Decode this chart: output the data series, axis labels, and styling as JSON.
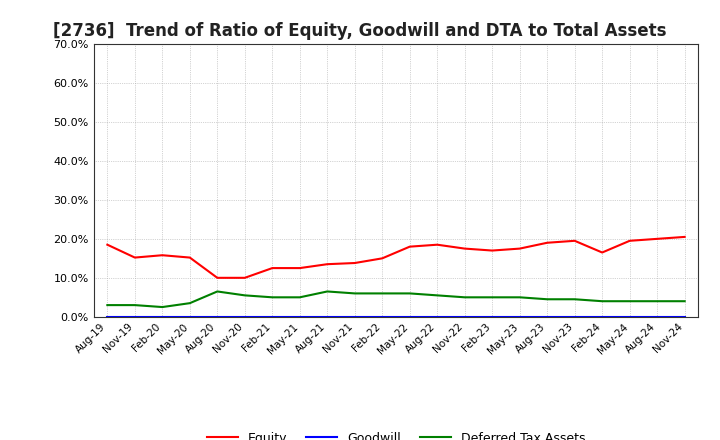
{
  "title": "[2736]  Trend of Ratio of Equity, Goodwill and DTA to Total Assets",
  "x_labels": [
    "Aug-19",
    "Nov-19",
    "Feb-20",
    "May-20",
    "Aug-20",
    "Nov-20",
    "Feb-21",
    "May-21",
    "Aug-21",
    "Nov-21",
    "Feb-22",
    "May-22",
    "Aug-22",
    "Nov-22",
    "Feb-23",
    "May-23",
    "Aug-23",
    "Nov-23",
    "Feb-24",
    "May-24",
    "Aug-24",
    "Nov-24"
  ],
  "equity": [
    18.5,
    15.2,
    15.8,
    15.2,
    10.0,
    10.0,
    12.5,
    12.5,
    13.5,
    13.8,
    15.0,
    18.0,
    18.5,
    17.5,
    17.0,
    17.5,
    19.0,
    19.5,
    16.5,
    19.5,
    20.0,
    20.5
  ],
  "goodwill": [
    0.0,
    0.0,
    0.0,
    0.0,
    0.0,
    0.0,
    0.0,
    0.0,
    0.0,
    0.0,
    0.0,
    0.0,
    0.0,
    0.0,
    0.0,
    0.0,
    0.0,
    0.0,
    0.0,
    0.0,
    0.0,
    0.0
  ],
  "dta": [
    3.0,
    3.0,
    2.5,
    3.5,
    6.5,
    5.5,
    5.0,
    5.0,
    6.5,
    6.0,
    6.0,
    6.0,
    5.5,
    5.0,
    5.0,
    5.0,
    4.5,
    4.5,
    4.0,
    4.0,
    4.0,
    4.0
  ],
  "equity_color": "#ff0000",
  "goodwill_color": "#0000ff",
  "dta_color": "#008000",
  "ylim": [
    0.0,
    70.0
  ],
  "yticks": [
    0.0,
    10.0,
    20.0,
    30.0,
    40.0,
    50.0,
    60.0,
    70.0
  ],
  "background_color": "#ffffff",
  "grid_color": "#aaaaaa",
  "title_fontsize": 12,
  "legend_labels": [
    "Equity",
    "Goodwill",
    "Deferred Tax Assets"
  ]
}
